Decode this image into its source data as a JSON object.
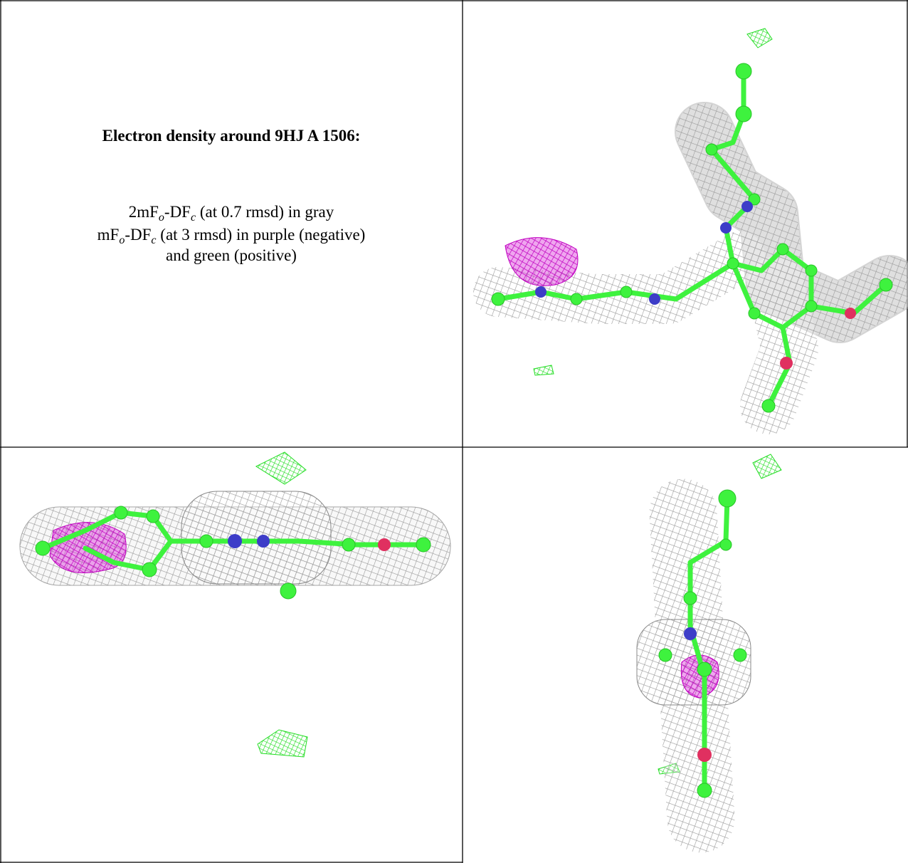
{
  "caption": {
    "title": "Electron density around 9HJ A 1506:",
    "lines": [
      {
        "parts": [
          "2mF",
          "o",
          "-DF",
          "c",
          " (at 0.7 rmsd) in gray"
        ]
      },
      {
        "parts": [
          "mF",
          "o",
          "-DF",
          "c",
          " (at 3 rmsd) in purple (negative)"
        ]
      },
      {
        "parts": [
          "and green (positive)"
        ]
      }
    ]
  }
}
